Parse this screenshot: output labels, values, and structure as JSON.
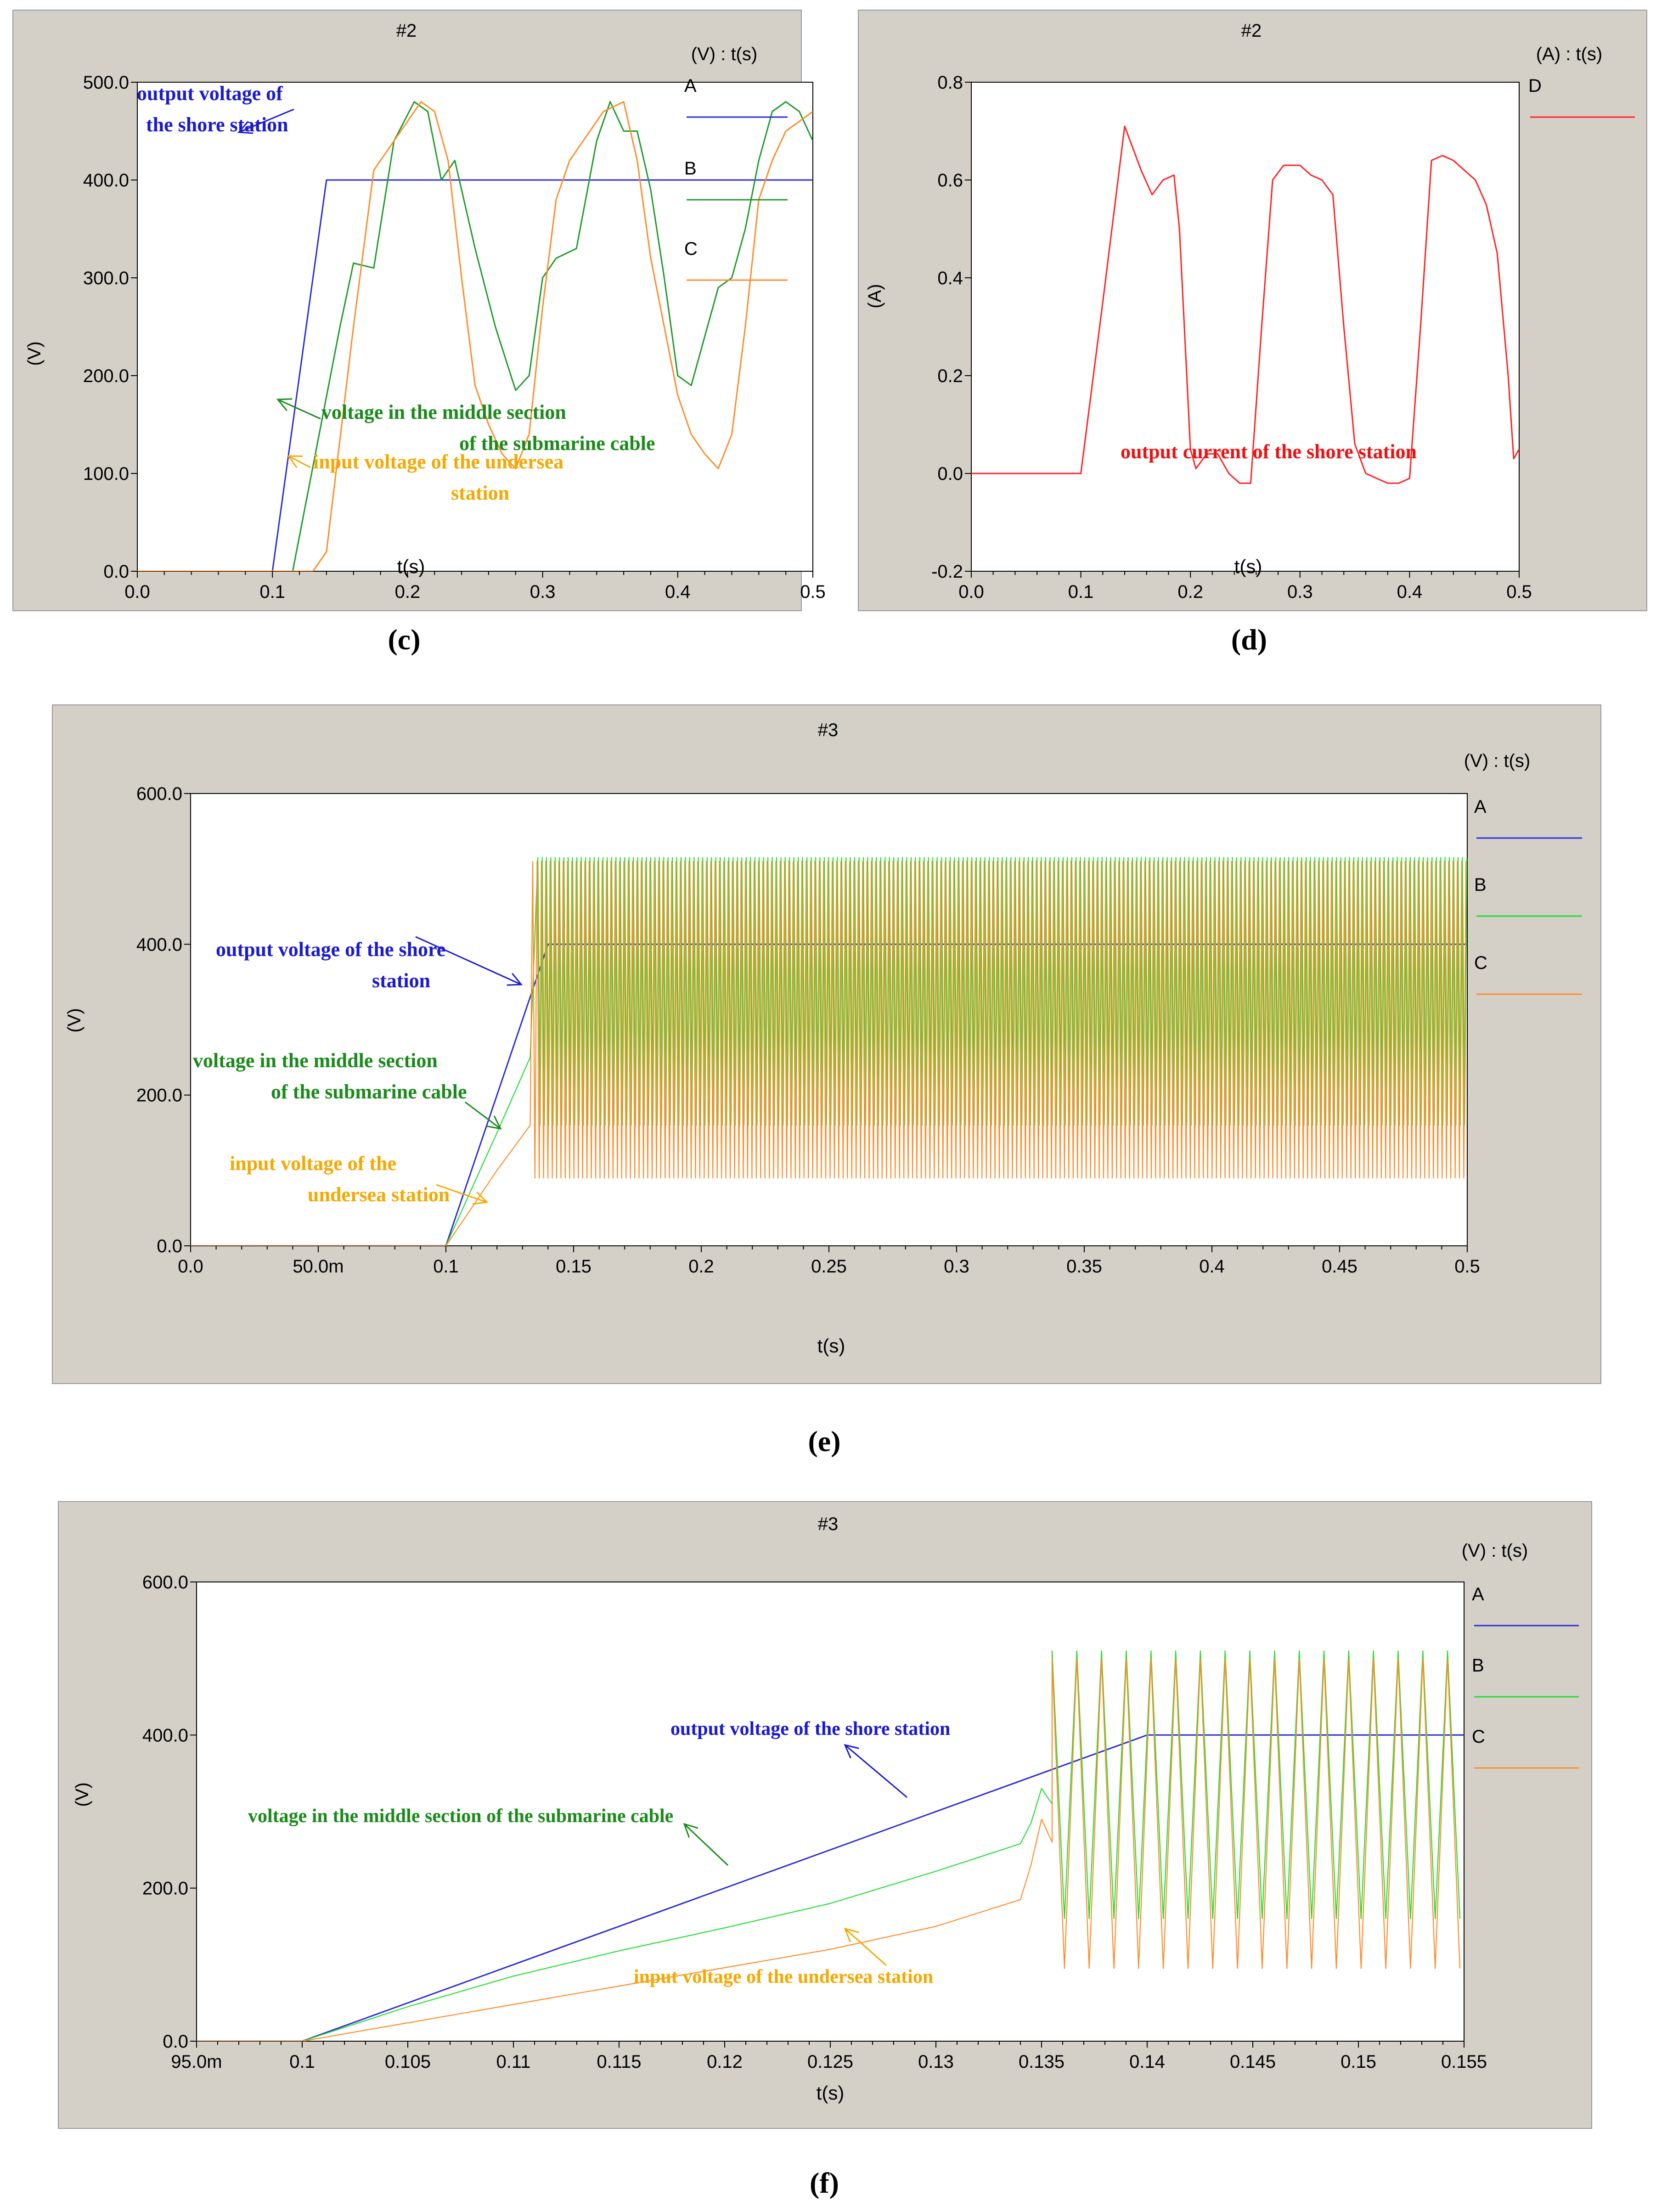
{
  "colors": {
    "frame": "#d4d0c8",
    "A": "#2b2bd6",
    "B_dark": "#1f9a2a",
    "B_light": "#22dd33",
    "C": "#ff8c2a",
    "D": "#ff2222",
    "ann_blue": "#1a1ad0",
    "ann_green": "#1a8a1a",
    "ann_orange": "#f5a800",
    "ann_red": "#ee1111"
  },
  "chart_data": [
    {
      "panel": "c",
      "caption": "(c)",
      "type": "line",
      "title": "#2",
      "units": "(V) : t(s)",
      "xlabel": "t(s)",
      "ylabel": "(V)",
      "xlim": [
        0,
        0.5
      ],
      "ylim": [
        0,
        500
      ],
      "xticks": [
        0,
        0.1,
        0.2,
        0.3,
        0.4,
        0.5
      ],
      "xtick_labels": [
        "0.0",
        "0.1",
        "0.2",
        "0.3",
        "0.4",
        "0.5"
      ],
      "yticks": [
        0,
        100,
        200,
        300,
        400,
        500
      ],
      "ytick_labels": [
        "0.0",
        "100.0",
        "200.0",
        "300.0",
        "400.0",
        "500.0"
      ],
      "legend": [
        {
          "letter": "A",
          "color": "#2b2bd6"
        },
        {
          "letter": "B",
          "color": "#1f9a2a"
        },
        {
          "letter": "C",
          "color": "#ff8c2a"
        }
      ],
      "series": [
        {
          "name": "A",
          "color": "#2b2bd6",
          "x": [
            0,
            0.1,
            0.14,
            0.5
          ],
          "y": [
            0,
            0,
            400,
            400
          ]
        },
        {
          "name": "B",
          "color": "#1f9a2a",
          "x": [
            0,
            0.115,
            0.15,
            0.16,
            0.175,
            0.19,
            0.205,
            0.215,
            0.225,
            0.235,
            0.25,
            0.265,
            0.28,
            0.29,
            0.3,
            0.31,
            0.325,
            0.34,
            0.35,
            0.36,
            0.37,
            0.38,
            0.39,
            0.4,
            0.41,
            0.42,
            0.43,
            0.44,
            0.45,
            0.46,
            0.47,
            0.48,
            0.49,
            0.5
          ],
          "y": [
            0,
            0,
            250,
            315,
            310,
            440,
            480,
            470,
            400,
            420,
            330,
            250,
            185,
            200,
            300,
            320,
            330,
            440,
            480,
            450,
            450,
            390,
            300,
            200,
            190,
            240,
            290,
            300,
            350,
            420,
            470,
            480,
            470,
            440
          ]
        },
        {
          "name": "C",
          "color": "#ff8c2a",
          "x": [
            0,
            0.13,
            0.14,
            0.16,
            0.175,
            0.19,
            0.2,
            0.21,
            0.22,
            0.23,
            0.24,
            0.25,
            0.26,
            0.27,
            0.28,
            0.29,
            0.3,
            0.31,
            0.32,
            0.33,
            0.345,
            0.36,
            0.37,
            0.38,
            0.39,
            0.4,
            0.41,
            0.42,
            0.43,
            0.44,
            0.45,
            0.46,
            0.47,
            0.48,
            0.5
          ],
          "y": [
            0,
            0,
            20,
            250,
            410,
            440,
            460,
            480,
            470,
            420,
            300,
            190,
            150,
            120,
            105,
            140,
            270,
            380,
            420,
            440,
            470,
            480,
            420,
            320,
            250,
            180,
            140,
            120,
            105,
            140,
            250,
            380,
            420,
            450,
            470
          ]
        }
      ],
      "annotations": [
        {
          "line1": "output voltage of",
          "line2": "the shore station",
          "color": "#1a1ad0"
        },
        {
          "line1": "voltage in the middle section",
          "line2": "of the submarine cable",
          "color": "#1a8a1a"
        },
        {
          "line1": "input voltage of the undersea",
          "line2": "station",
          "color": "#f5a800"
        }
      ]
    },
    {
      "panel": "d",
      "caption": "(d)",
      "type": "line",
      "title": "#2",
      "units": "(A) : t(s)",
      "xlabel": "t(s)",
      "ylabel": "(A)",
      "xlim": [
        0,
        0.5
      ],
      "ylim": [
        -0.2,
        0.8
      ],
      "xticks": [
        0,
        0.1,
        0.2,
        0.3,
        0.4,
        0.5
      ],
      "xtick_labels": [
        "0.0",
        "0.1",
        "0.2",
        "0.3",
        "0.4",
        "0.5"
      ],
      "yticks": [
        -0.2,
        0,
        0.2,
        0.4,
        0.6,
        0.8
      ],
      "ytick_labels": [
        "-0.2",
        "0.0",
        "0.2",
        "0.4",
        "0.6",
        "0.8"
      ],
      "legend": [
        {
          "letter": "D",
          "color": "#ff2222"
        }
      ],
      "series": [
        {
          "name": "D",
          "color": "#ff2222",
          "x": [
            0,
            0.1,
            0.12,
            0.14,
            0.155,
            0.165,
            0.175,
            0.185,
            0.19,
            0.2,
            0.205,
            0.215,
            0.225,
            0.235,
            0.245,
            0.255,
            0.265,
            0.275,
            0.285,
            0.3,
            0.31,
            0.32,
            0.33,
            0.34,
            0.35,
            0.36,
            0.37,
            0.38,
            0.39,
            0.4,
            0.41,
            0.42,
            0.43,
            0.44,
            0.45,
            0.46,
            0.47,
            0.48,
            0.49,
            0.495,
            0.5
          ],
          "y": [
            0,
            0,
            0.35,
            0.71,
            0.62,
            0.57,
            0.6,
            0.61,
            0.5,
            0.05,
            0.01,
            0.04,
            0.04,
            0,
            -0.02,
            -0.02,
            0.3,
            0.6,
            0.63,
            0.63,
            0.61,
            0.6,
            0.57,
            0.3,
            0.06,
            0,
            -0.01,
            -0.02,
            -0.02,
            -0.01,
            0.3,
            0.64,
            0.65,
            0.64,
            0.62,
            0.6,
            0.55,
            0.45,
            0.2,
            0.03,
            0.05
          ]
        }
      ],
      "annotations": [
        {
          "line1": "output current of the shore station",
          "line2": "",
          "color": "#ee1111"
        }
      ]
    },
    {
      "panel": "e",
      "caption": "(e)",
      "type": "line",
      "title": "#3",
      "units": "(V) : t(s)",
      "xlabel": "t(s)",
      "ylabel": "(V)",
      "xlim": [
        0,
        0.5
      ],
      "ylim": [
        0,
        600
      ],
      "xticks": [
        0,
        0.05,
        0.1,
        0.15,
        0.2,
        0.25,
        0.3,
        0.35,
        0.4,
        0.45,
        0.5
      ],
      "xtick_labels": [
        "0.0",
        "50.0m",
        "0.1",
        "0.15",
        "0.2",
        "0.25",
        "0.3",
        "0.35",
        "0.4",
        "0.45",
        "0.5"
      ],
      "yticks": [
        0,
        200,
        400,
        600
      ],
      "ytick_labels": [
        "0.0",
        "200.0",
        "400.0",
        "600.0"
      ],
      "legend": [
        {
          "letter": "A",
          "color": "#2b2bd6"
        },
        {
          "letter": "B",
          "color": "#22dd33"
        },
        {
          "letter": "C",
          "color": "#ff8c2a"
        }
      ],
      "series": [
        {
          "name": "A",
          "color": "#2b2bd6",
          "x": [
            0,
            0.1,
            0.14,
            0.5
          ],
          "y": [
            0,
            0,
            400,
            400
          ]
        },
        {
          "name": "B",
          "color": "#22dd33",
          "x": [
            0,
            0.1,
            0.12,
            0.133
          ],
          "y": [
            0,
            0,
            150,
            250
          ],
          "oscillation": {
            "start": 0.136,
            "end": 0.5,
            "period": 0.0017,
            "min": 160,
            "max": 515
          }
        },
        {
          "name": "C",
          "color": "#ff8c2a",
          "x": [
            0,
            0.1,
            0.12,
            0.133
          ],
          "y": [
            0,
            0,
            100,
            160
          ],
          "oscillation": {
            "start": 0.134,
            "end": 0.5,
            "period": 0.0017,
            "min": 90,
            "max": 510
          }
        }
      ],
      "annotations": [
        {
          "line1": "output voltage of the shore",
          "line2": "station",
          "color": "#1a1ad0"
        },
        {
          "line1": "voltage in the middle section",
          "line2": "of the submarine cable",
          "color": "#1a8a1a"
        },
        {
          "line1": "input voltage of the",
          "line2": "undersea station",
          "color": "#f5a800"
        }
      ]
    },
    {
      "panel": "f",
      "caption": "(f)",
      "type": "line",
      "title": "#3",
      "units": "(V) : t(s)",
      "xlabel": "t(s)",
      "ylabel": "(V)",
      "xlim": [
        0.095,
        0.155
      ],
      "ylim": [
        0,
        600
      ],
      "xticks": [
        0.095,
        0.1,
        0.105,
        0.11,
        0.115,
        0.12,
        0.125,
        0.13,
        0.135,
        0.14,
        0.145,
        0.15,
        0.155
      ],
      "xtick_labels": [
        "95.0m",
        "0.1",
        "0.105",
        "0.11",
        "0.115",
        "0.12",
        "0.125",
        "0.13",
        "0.135",
        "0.14",
        "0.145",
        "0.15",
        "0.155"
      ],
      "yticks": [
        0,
        200,
        400,
        600
      ],
      "ytick_labels": [
        "0.0",
        "200.0",
        "400.0",
        "600.0"
      ],
      "legend": [
        {
          "letter": "A",
          "color": "#2b2bd6"
        },
        {
          "letter": "B",
          "color": "#22dd33"
        },
        {
          "letter": "C",
          "color": "#ff8c2a"
        }
      ],
      "series": [
        {
          "name": "A",
          "color": "#2b2bd6",
          "x": [
            0.095,
            0.1,
            0.14,
            0.155
          ],
          "y": [
            0,
            0,
            400,
            400
          ]
        },
        {
          "name": "B",
          "color": "#22dd33",
          "x": [
            0.095,
            0.1,
            0.105,
            0.11,
            0.115,
            0.12,
            0.125,
            0.13,
            0.134,
            0.1345,
            0.135,
            0.1355
          ],
          "y": [
            0,
            0,
            45,
            85,
            118,
            148,
            180,
            222,
            258,
            285,
            330,
            310
          ],
          "oscillation": {
            "start": 0.1355,
            "end": 0.155,
            "period": 0.00117,
            "min": 160,
            "max": 510
          }
        },
        {
          "name": "C",
          "color": "#ff8c2a",
          "x": [
            0.095,
            0.1,
            0.105,
            0.11,
            0.115,
            0.12,
            0.125,
            0.13,
            0.134,
            0.1345,
            0.135,
            0.1355
          ],
          "y": [
            0,
            0,
            24,
            48,
            72,
            96,
            120,
            150,
            185,
            230,
            290,
            260
          ],
          "oscillation": {
            "start": 0.1355,
            "end": 0.155,
            "period": 0.00117,
            "min": 95,
            "max": 500
          }
        }
      ],
      "annotations": [
        {
          "line1": "output voltage of the shore station",
          "line2": "",
          "color": "#1a1ad0"
        },
        {
          "line1": "voltage in the middle section of the submarine cable",
          "line2": "",
          "color": "#1a8a1a"
        },
        {
          "line1": "input voltage of the undersea station",
          "line2": "",
          "color": "#f5a800"
        }
      ]
    }
  ]
}
